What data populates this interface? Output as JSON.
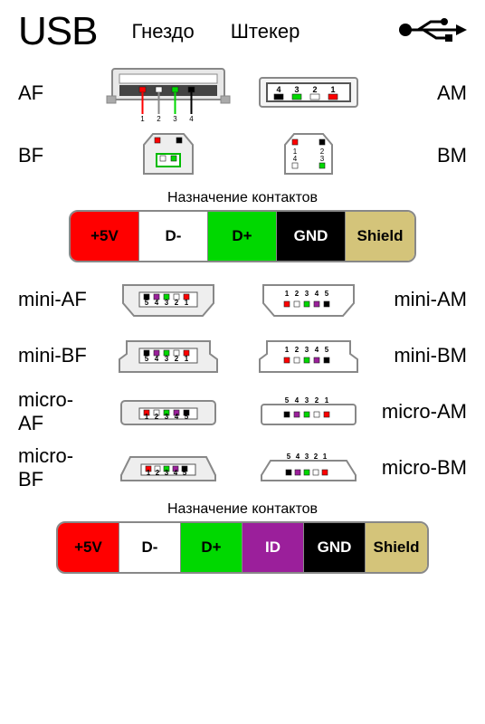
{
  "colors": {
    "red": "#ff0000",
    "white": "#ffffff",
    "green": "#00d800",
    "black": "#000000",
    "shield": "#d4c47a",
    "purple": "#9b1f9b",
    "frame": "#9a9a9a",
    "metal": "#c8c8c8",
    "darkframe": "#555555"
  },
  "header": {
    "title": "USB",
    "col_socket": "Гнездо",
    "col_plug": "Штекер"
  },
  "rows4": [
    {
      "left": "AF",
      "right": "AM"
    },
    {
      "left": "BF",
      "right": "BM"
    }
  ],
  "legend4_caption": "Назначение контактов",
  "legend4": [
    {
      "label": "+5V",
      "bg": "#ff0000",
      "fg": "#000000"
    },
    {
      "label": "D-",
      "bg": "#ffffff",
      "fg": "#000000"
    },
    {
      "label": "D+",
      "bg": "#00d800",
      "fg": "#000000"
    },
    {
      "label": "GND",
      "bg": "#000000",
      "fg": "#ffffff"
    },
    {
      "label": "Shield",
      "bg": "#d4c47a",
      "fg": "#000000"
    }
  ],
  "rows5": [
    {
      "left": "mini-AF",
      "right": "mini-AM"
    },
    {
      "left": "mini-BF",
      "right": "mini-BM"
    },
    {
      "left": "micro-AF",
      "right": "micro-AM"
    },
    {
      "left": "micro-BF",
      "right": "micro-BM"
    }
  ],
  "legend5_caption": "Назначение контактов",
  "legend5": [
    {
      "label": "+5V",
      "bg": "#ff0000",
      "fg": "#000000"
    },
    {
      "label": "D-",
      "bg": "#ffffff",
      "fg": "#000000"
    },
    {
      "label": "D+",
      "bg": "#00d800",
      "fg": "#000000"
    },
    {
      "label": "ID",
      "bg": "#9b1f9b",
      "fg": "#ffffff"
    },
    {
      "label": "GND",
      "bg": "#000000",
      "fg": "#ffffff"
    },
    {
      "label": "Shield",
      "bg": "#d4c47a",
      "fg": "#000000"
    }
  ],
  "pin_colors4": [
    "#ff0000",
    "#ffffff",
    "#00d800",
    "#000000"
  ],
  "pin_colors5": [
    "#ff0000",
    "#ffffff",
    "#00d800",
    "#9b1f9b",
    "#000000"
  ],
  "pins4_labels": [
    "1",
    "2",
    "3",
    "4"
  ],
  "pins4_labels_rev": [
    "4",
    "3",
    "2",
    "1"
  ],
  "pins5_labels": [
    "1",
    "2",
    "3",
    "4",
    "5"
  ],
  "pins5_labels_rev": [
    "5",
    "4",
    "3",
    "2",
    "1"
  ]
}
